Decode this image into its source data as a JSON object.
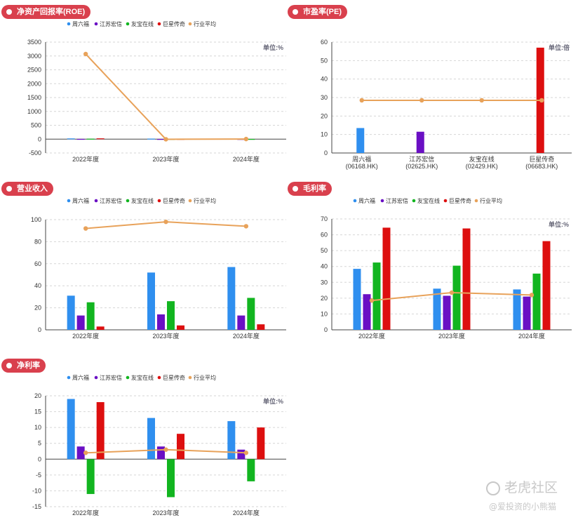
{
  "colors": [
    "#2f8fef",
    "#6a0fc4",
    "#12b520",
    "#dd0f0f",
    "#e8a25a"
  ],
  "legend": [
    "周六福",
    "江苏宏信",
    "友宝在线",
    "巨星传奇",
    "行业平均"
  ],
  "watermark": {
    "brand": "老虎社区",
    "user": "@爱投资的小熊猫"
  },
  "panels": [
    {
      "id": "roe",
      "title": "净资产回报率(ROE)",
      "unit": "单位:%",
      "chart_data": {
        "type": "bar",
        "title": "净资产回报率(ROE)",
        "categories": [
          "2022年度",
          "2023年度",
          "2024年度"
        ],
        "series": [
          {
            "name": "周六福",
            "values": [
              25,
              18,
              15
            ]
          },
          {
            "name": "江苏宏信",
            "values": [
              8,
              5,
              3
            ]
          },
          {
            "name": "友宝在线",
            "values": [
              15,
              -8,
              6
            ]
          },
          {
            "name": "巨星传奇",
            "values": [
              28,
              4,
              0
            ]
          }
        ],
        "average": {
          "name": "行业平均",
          "values": [
            3070,
            -5,
            3
          ]
        },
        "ylim": [
          -500,
          3500
        ],
        "yticks": [
          -500,
          0,
          500,
          1000,
          1500,
          2000,
          2500,
          3000,
          3500
        ]
      }
    },
    {
      "id": "pe",
      "title": "市盈率(PE)",
      "unit": "单位:倍",
      "chart_data": {
        "type": "bar",
        "title": "市盈率(PE)",
        "categories": [
          "周六福\n(06168.HK)",
          "江苏宏信\n(02625.HK)",
          "友宝在线\n(02429.HK)",
          "巨星传奇\n(06683.HK)"
        ],
        "values": [
          13.5,
          11.5,
          0,
          57
        ],
        "average": {
          "name": "行业平均",
          "values": [
            28.5,
            28.5,
            28.5,
            28.5
          ]
        },
        "ylim": [
          0,
          60
        ],
        "yticks": [
          0,
          10,
          20,
          30,
          40,
          50,
          60
        ]
      }
    },
    {
      "id": "revenue",
      "title": "营业收入",
      "unit": "",
      "chart_data": {
        "type": "bar",
        "title": "营业收入",
        "categories": [
          "2022年度",
          "2023年度",
          "2024年度"
        ],
        "series": [
          {
            "name": "周六福",
            "values": [
              31,
              52,
              57
            ]
          },
          {
            "name": "江苏宏信",
            "values": [
              13,
              14,
              13
            ]
          },
          {
            "name": "友宝在线",
            "values": [
              25,
              26,
              29
            ]
          },
          {
            "name": "巨星传奇",
            "values": [
              3,
              4,
              5
            ]
          }
        ],
        "average": {
          "name": "行业平均",
          "values": [
            92,
            98,
            94
          ]
        },
        "ylim": [
          0,
          100
        ],
        "yticks": [
          0,
          20,
          40,
          60,
          80,
          100
        ]
      }
    },
    {
      "id": "gross",
      "title": "毛利率",
      "unit": "单位:%",
      "chart_data": {
        "type": "bar",
        "title": "毛利率",
        "categories": [
          "2022年度",
          "2023年度",
          "2024年度"
        ],
        "series": [
          {
            "name": "周六福",
            "values": [
              38.5,
              26,
              25.5
            ]
          },
          {
            "name": "江苏宏信",
            "values": [
              22.5,
              21.5,
              21
            ]
          },
          {
            "name": "友宝在线",
            "values": [
              42.5,
              40.5,
              35.5
            ]
          },
          {
            "name": "巨星传奇",
            "values": [
              64.5,
              64,
              56
            ]
          }
        ],
        "average": {
          "name": "行业平均",
          "values": [
            18.5,
            23.5,
            22
          ]
        },
        "ylim": [
          0,
          70
        ],
        "yticks": [
          0,
          10,
          20,
          30,
          40,
          50,
          60,
          70
        ]
      }
    },
    {
      "id": "net",
      "title": "净利率",
      "unit": "单位:%",
      "chart_data": {
        "type": "bar",
        "title": "净利率",
        "categories": [
          "2022年度",
          "2023年度",
          "2024年度"
        ],
        "series": [
          {
            "name": "周六福",
            "values": [
              19,
              13,
              12
            ]
          },
          {
            "name": "江苏宏信",
            "values": [
              4,
              4,
              3
            ]
          },
          {
            "name": "友宝在线",
            "values": [
              -11,
              -12,
              -7
            ]
          },
          {
            "name": "巨星传奇",
            "values": [
              18,
              8,
              10
            ]
          }
        ],
        "average": {
          "name": "行业平均",
          "values": [
            2,
            3,
            2
          ]
        },
        "ylim": [
          -15,
          20
        ],
        "yticks": [
          -15,
          -10,
          -5,
          0,
          5,
          10,
          15,
          20
        ]
      }
    }
  ]
}
